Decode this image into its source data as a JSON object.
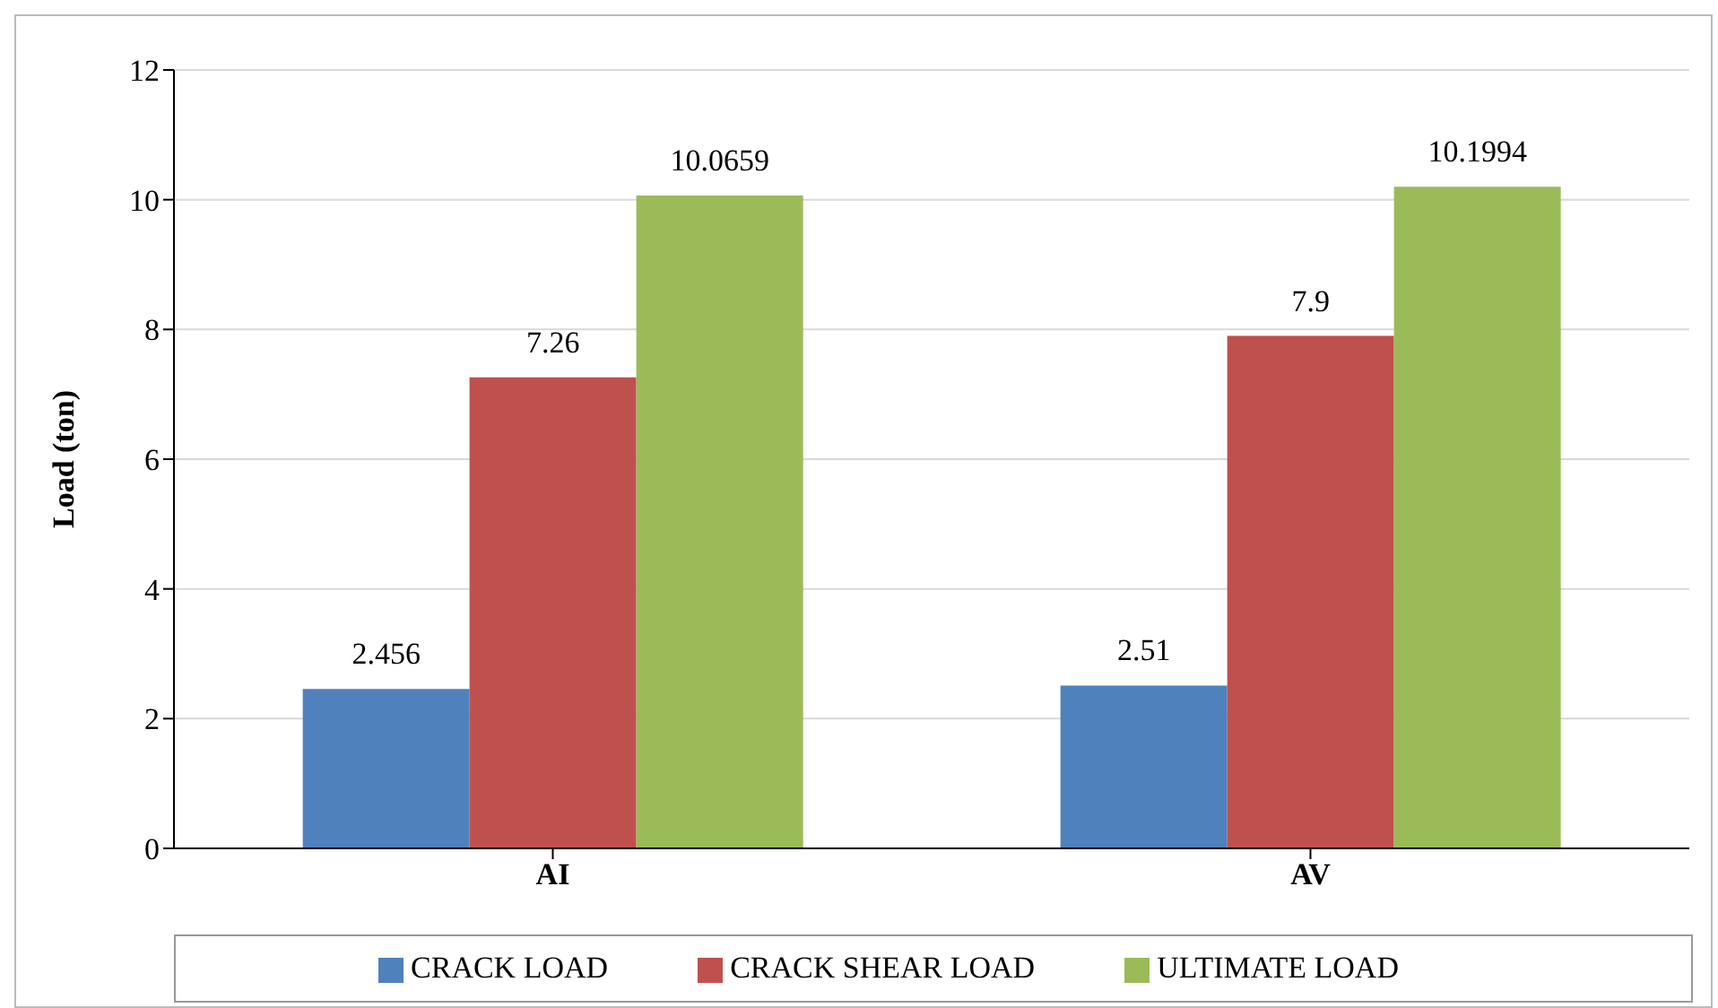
{
  "chart_data": {
    "type": "bar",
    "categories": [
      "AI",
      "AV"
    ],
    "series": [
      {
        "name": "CRACK LOAD",
        "color": "#4f81bd",
        "values": [
          2.456,
          2.51
        ]
      },
      {
        "name": "CRACK SHEAR LOAD",
        "color": "#c0504d",
        "values": [
          7.26,
          7.9
        ]
      },
      {
        "name": "ULTIMATE LOAD",
        "color": "#9bbb59",
        "values": [
          10.0659,
          10.1994
        ]
      }
    ],
    "ylabel": "Load (ton)",
    "ylim": [
      0,
      12
    ],
    "yticks": [
      0,
      2,
      4,
      6,
      8,
      10,
      12
    ],
    "grid": "y",
    "legend": "bottom",
    "data_labels": true
  }
}
